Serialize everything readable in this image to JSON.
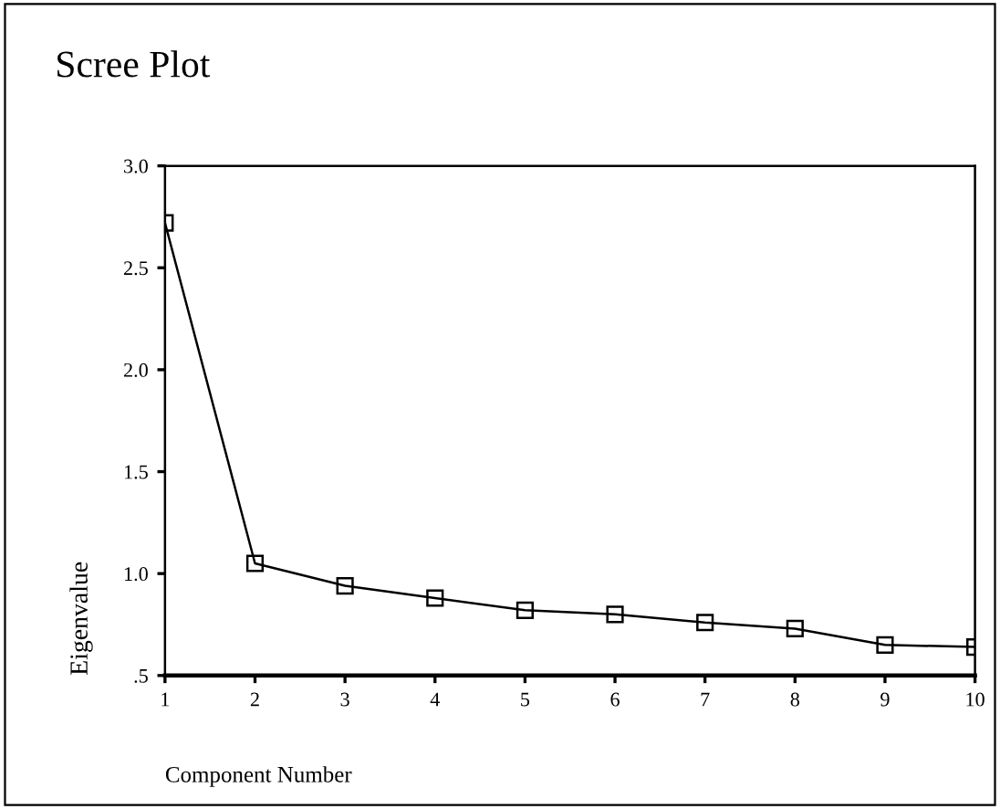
{
  "chart_data": {
    "type": "line",
    "title": "Scree Plot",
    "xlabel": "Component Number",
    "ylabel": "Eigenvalue",
    "x": [
      1,
      2,
      3,
      4,
      5,
      6,
      7,
      8,
      9,
      10
    ],
    "series": [
      {
        "color": "#000000",
        "values": [
          2.72,
          1.05,
          0.94,
          0.88,
          0.82,
          0.8,
          0.76,
          0.73,
          0.65,
          0.64
        ]
      }
    ],
    "xlim": [
      1,
      10
    ],
    "xticks": [
      1,
      2,
      3,
      4,
      5,
      6,
      7,
      8,
      9,
      10
    ],
    "ylim": [
      0.5,
      3.0
    ],
    "yticks": [
      {
        "value": 0.5,
        "label": ".5"
      },
      {
        "value": 1.0,
        "label": "1.0"
      },
      {
        "value": 1.5,
        "label": "1.5"
      },
      {
        "value": 2.0,
        "label": "2.0"
      },
      {
        "value": 2.5,
        "label": "2.5"
      },
      {
        "value": 3.0,
        "label": "3.0"
      }
    ],
    "marker": "square",
    "line_style": "solid",
    "grid": false,
    "legend": false
  }
}
